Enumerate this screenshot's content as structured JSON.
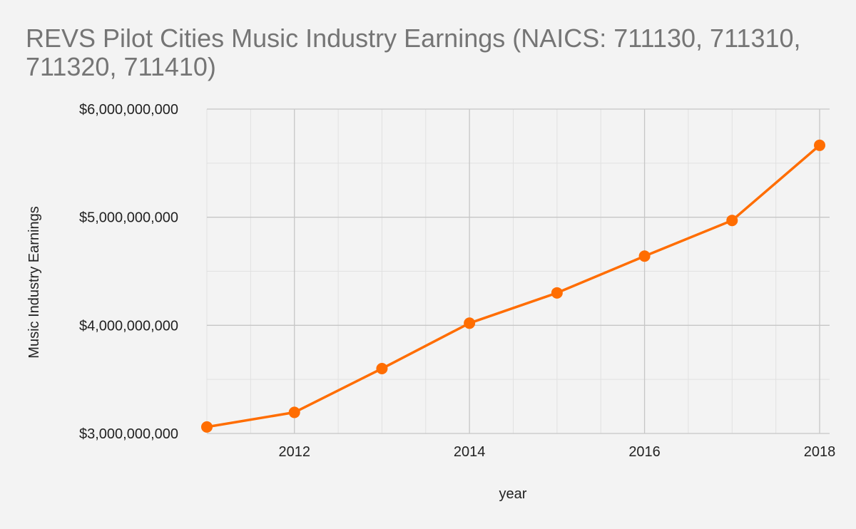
{
  "chart_data": {
    "type": "line",
    "title": "REVS Pilot Cities Music Industry Earnings (NAICS: 711130, 711310, 711320, 711410)",
    "xlabel": "year",
    "ylabel": "Music Industry Earnings",
    "x": [
      2011,
      2012,
      2013,
      2014,
      2015,
      2016,
      2017,
      2018
    ],
    "series": [
      {
        "values": [
          3060000000,
          3195000000,
          3600000000,
          4020000000,
          4300000000,
          4640000000,
          4970000000,
          5665000000
        ]
      }
    ],
    "xlim": [
      2011,
      2018
    ],
    "ylim": [
      3000000000,
      6000000000
    ],
    "x_ticks": [
      2012,
      2014,
      2016,
      2018
    ],
    "x_tick_labels": [
      "2012",
      "2014",
      "2016",
      "2018"
    ],
    "y_ticks": [
      3000000000,
      4000000000,
      5000000000,
      6000000000
    ],
    "y_tick_labels": [
      "$3,000,000,000",
      "$4,000,000,000",
      "$5,000,000,000",
      "$6,000,000,000"
    ],
    "grid": true,
    "minor_grid": true,
    "legend": "none",
    "colors": {
      "line": "#ff6d01",
      "major_grid": "#c6c6c6",
      "minor_grid": "#e1e1e1",
      "title": "#757575",
      "text": "#222222",
      "background": "#f3f3f3"
    }
  }
}
